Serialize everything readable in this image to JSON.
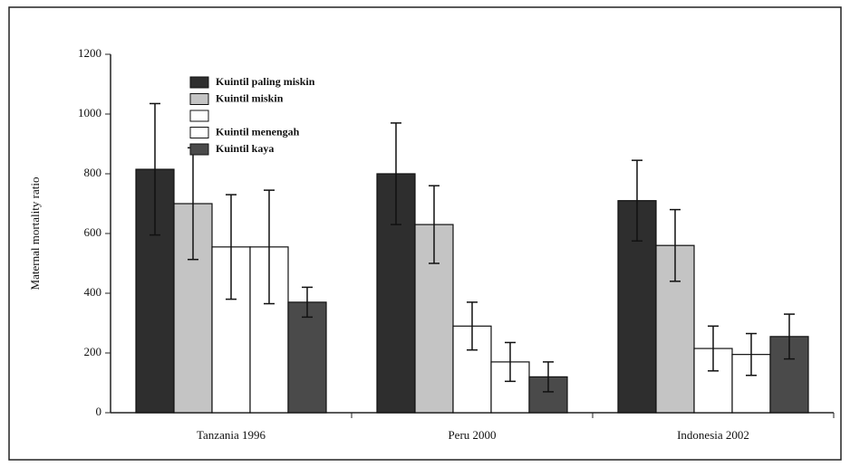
{
  "chart_data": {
    "type": "bar",
    "y_label": "Maternal mortality ratio",
    "categories": [
      "Tanzania 1996",
      "Peru 2000",
      "Indonesia 2002"
    ],
    "series": [
      {
        "name": "Kuintil paling miskin",
        "color": "#2e2e2e",
        "values": [
          815,
          800,
          710
        ],
        "errors": [
          220,
          170,
          135
        ]
      },
      {
        "name": "Kuintil miskin",
        "color": "#c4c4c4",
        "values": [
          700,
          630,
          560
        ],
        "errors": [
          187,
          130,
          120
        ]
      },
      {
        "name": null,
        "color": "#ffffff",
        "values": [
          555,
          290,
          215
        ],
        "errors": [
          175,
          80,
          75
        ]
      },
      {
        "name": "Kuintil menengah",
        "color": "#ffffff",
        "values": [
          555,
          170,
          195
        ],
        "errors": [
          190,
          65,
          70
        ]
      },
      {
        "name": "Kuintil kaya",
        "color": "#4a4a4a",
        "values": [
          370,
          120,
          255
        ],
        "errors": [
          50,
          50,
          75
        ]
      }
    ],
    "ylim": [
      0,
      1200
    ],
    "yticks": [
      0,
      200,
      400,
      600,
      800,
      1000,
      1200
    ]
  }
}
